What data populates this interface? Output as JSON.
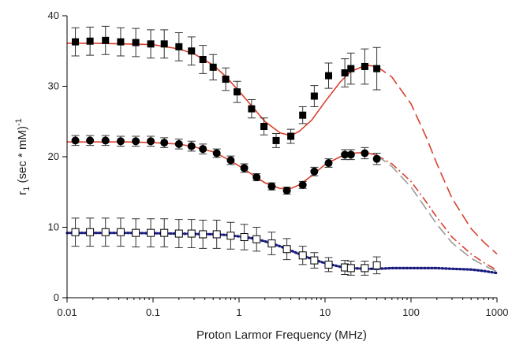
{
  "chart_data": {
    "type": "scatter",
    "title": "",
    "xlabel": "Proton Larmor Frequency (MHz)",
    "ylabel": {
      "main": "r",
      "subscript": "1",
      "rest": " (sec * mM)",
      "superscript": "-1"
    },
    "x_scale": "log",
    "xlim": [
      0.01,
      1000
    ],
    "ylim": [
      0,
      40
    ],
    "x_ticks": [
      0.01,
      0.1,
      1,
      10,
      100,
      1000
    ],
    "x_tick_labels": [
      "0.01",
      "0.1",
      "1",
      "10",
      "100",
      "1000"
    ],
    "y_ticks": [
      0,
      10,
      20,
      30,
      40
    ],
    "y_tick_labels": [
      "0",
      "10",
      "20",
      "30",
      "40"
    ],
    "grid": false,
    "legend": "none",
    "series": [
      {
        "marker": "filled-square",
        "x": [
          0.0125,
          0.0185,
          0.028,
          0.042,
          0.063,
          0.094,
          0.135,
          0.2,
          0.28,
          0.38,
          0.5,
          0.7,
          0.95,
          1.4,
          1.95,
          2.7,
          4.0,
          5.5,
          7.5,
          11,
          17,
          20,
          29,
          40
        ],
        "y": [
          36.3,
          36.4,
          36.5,
          36.3,
          36.2,
          36.0,
          36.0,
          35.6,
          35.0,
          33.8,
          32.7,
          31.0,
          29.2,
          26.8,
          24.3,
          22.3,
          22.9,
          25.9,
          28.6,
          31.5,
          31.9,
          32.5,
          32.8,
          32.5
        ],
        "err": [
          2.0,
          2.0,
          2.0,
          2.0,
          2.0,
          2.0,
          2.0,
          2.0,
          2.0,
          2.0,
          1.8,
          1.6,
          1.5,
          1.3,
          1.2,
          1.0,
          1.0,
          1.2,
          1.5,
          1.8,
          2.0,
          2.2,
          2.5,
          3.0
        ],
        "color": "#000000"
      },
      {
        "marker": "filled-circle",
        "x": [
          0.0125,
          0.0185,
          0.028,
          0.042,
          0.063,
          0.094,
          0.135,
          0.2,
          0.28,
          0.38,
          0.55,
          0.8,
          1.15,
          1.6,
          2.4,
          3.6,
          5.5,
          7.5,
          11,
          17,
          20,
          29,
          40
        ],
        "y": [
          22.3,
          22.3,
          22.3,
          22.2,
          22.2,
          22.2,
          22.0,
          21.8,
          21.5,
          21.1,
          20.5,
          19.5,
          18.4,
          17.1,
          15.8,
          15.2,
          16.0,
          17.9,
          19.1,
          20.3,
          20.3,
          20.5,
          19.7
        ],
        "err": [
          0.7,
          0.7,
          0.7,
          0.7,
          0.7,
          0.7,
          0.7,
          0.7,
          0.7,
          0.7,
          0.6,
          0.6,
          0.6,
          0.5,
          0.5,
          0.5,
          0.5,
          0.6,
          0.6,
          0.7,
          0.7,
          0.8,
          0.8
        ],
        "color": "#000000"
      },
      {
        "marker": "open-square",
        "x": [
          0.0125,
          0.0185,
          0.028,
          0.042,
          0.063,
          0.094,
          0.135,
          0.2,
          0.28,
          0.38,
          0.55,
          0.8,
          1.15,
          1.6,
          2.4,
          3.6,
          5.5,
          7.5,
          11,
          17,
          20,
          29,
          40
        ],
        "y": [
          9.3,
          9.3,
          9.3,
          9.3,
          9.2,
          9.2,
          9.2,
          9.1,
          9.1,
          9.0,
          9.0,
          8.8,
          8.6,
          8.3,
          7.7,
          6.9,
          6.0,
          5.3,
          4.7,
          4.3,
          4.2,
          4.2,
          4.6
        ],
        "err": [
          2.0,
          2.0,
          2.0,
          2.0,
          2.0,
          2.0,
          2.0,
          2.0,
          2.0,
          2.0,
          2.0,
          1.9,
          1.8,
          1.7,
          1.6,
          1.5,
          1.3,
          1.1,
          1.0,
          1.0,
          1.0,
          1.0,
          1.2
        ],
        "color": "#000000"
      }
    ],
    "fits": [
      {
        "style": "solid-then-long-dash",
        "color": "#d9402b",
        "x": [
          0.01,
          0.02,
          0.05,
          0.1,
          0.2,
          0.3,
          0.5,
          0.7,
          1,
          1.5,
          2,
          3,
          4,
          5,
          7,
          10,
          15,
          20,
          30,
          40,
          60,
          100,
          150,
          200,
          300,
          500,
          700,
          1000
        ],
        "y": [
          36.1,
          36.1,
          36.0,
          35.9,
          35.3,
          34.6,
          33.0,
          31.4,
          29.3,
          26.8,
          25.0,
          23.4,
          23.0,
          23.6,
          25.2,
          27.8,
          30.6,
          32.1,
          33.0,
          32.8,
          31.3,
          27.5,
          22.8,
          19.0,
          14.1,
          9.8,
          7.9,
          6.2
        ],
        "solid_until_x": 40
      },
      {
        "style": "solid-then-dash-dot",
        "color": "#d9402b",
        "x": [
          0.01,
          0.02,
          0.05,
          0.1,
          0.2,
          0.3,
          0.5,
          0.7,
          1,
          1.5,
          2,
          3,
          4,
          5,
          7,
          10,
          15,
          20,
          30,
          40,
          60,
          100,
          150,
          200,
          300,
          500,
          700,
          1000
        ],
        "y": [
          22.1,
          22.1,
          22.1,
          22.0,
          21.8,
          21.4,
          20.7,
          19.8,
          18.7,
          17.3,
          16.3,
          15.5,
          15.5,
          16.0,
          17.3,
          18.9,
          20.0,
          20.5,
          20.6,
          20.2,
          19.0,
          16.5,
          13.6,
          11.4,
          8.6,
          6.2,
          5.0,
          3.9
        ],
        "solid_until_x": 40
      },
      {
        "style": "long-dash",
        "color": "#999999",
        "x": [
          40,
          60,
          100,
          150,
          200,
          300,
          500,
          700,
          1000
        ],
        "y": [
          20.2,
          18.6,
          15.7,
          12.6,
          10.4,
          7.8,
          5.6,
          4.6,
          3.7
        ],
        "solid_until_x": 0
      },
      {
        "style": "dotted",
        "color": "#1a1a80",
        "x": [
          0.01,
          0.02,
          0.05,
          0.1,
          0.2,
          0.3,
          0.5,
          0.7,
          1,
          1.5,
          2,
          3,
          4,
          5,
          7,
          10,
          15,
          20,
          30,
          40,
          60,
          100,
          200,
          300,
          500,
          700,
          1000
        ],
        "y": [
          9.2,
          9.2,
          9.2,
          9.15,
          9.1,
          9.05,
          9.0,
          8.9,
          8.7,
          8.4,
          8.0,
          7.3,
          6.7,
          6.2,
          5.5,
          4.9,
          4.4,
          4.2,
          4.1,
          4.1,
          4.2,
          4.2,
          4.2,
          4.1,
          4.0,
          3.8,
          3.5
        ],
        "solid_until_x": 0
      }
    ]
  }
}
